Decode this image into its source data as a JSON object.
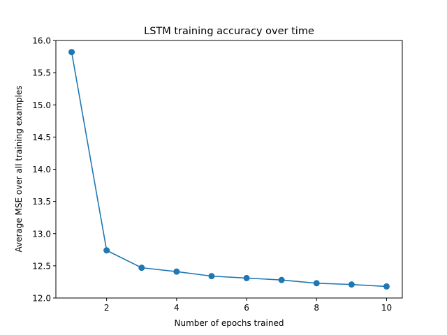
{
  "chart_data": {
    "type": "line",
    "title": "LSTM training accuracy over time",
    "xlabel": "Number of epochs trained",
    "ylabel": "Average MSE over all training examples",
    "xlim": [
      0.55,
      10.45
    ],
    "ylim": [
      12.0,
      16.0
    ],
    "xticks": [
      2,
      4,
      6,
      8,
      10
    ],
    "yticks": [
      12.0,
      12.5,
      13.0,
      13.5,
      14.0,
      14.5,
      15.0,
      15.5,
      16.0
    ],
    "grid": false,
    "series": [
      {
        "color": "#1f77b4",
        "marker": "circle",
        "x": [
          1,
          2,
          3,
          4,
          5,
          6,
          7,
          8,
          9,
          10
        ],
        "y": [
          15.82,
          12.74,
          12.47,
          12.41,
          12.34,
          12.31,
          12.28,
          12.23,
          12.21,
          12.18
        ]
      }
    ]
  }
}
